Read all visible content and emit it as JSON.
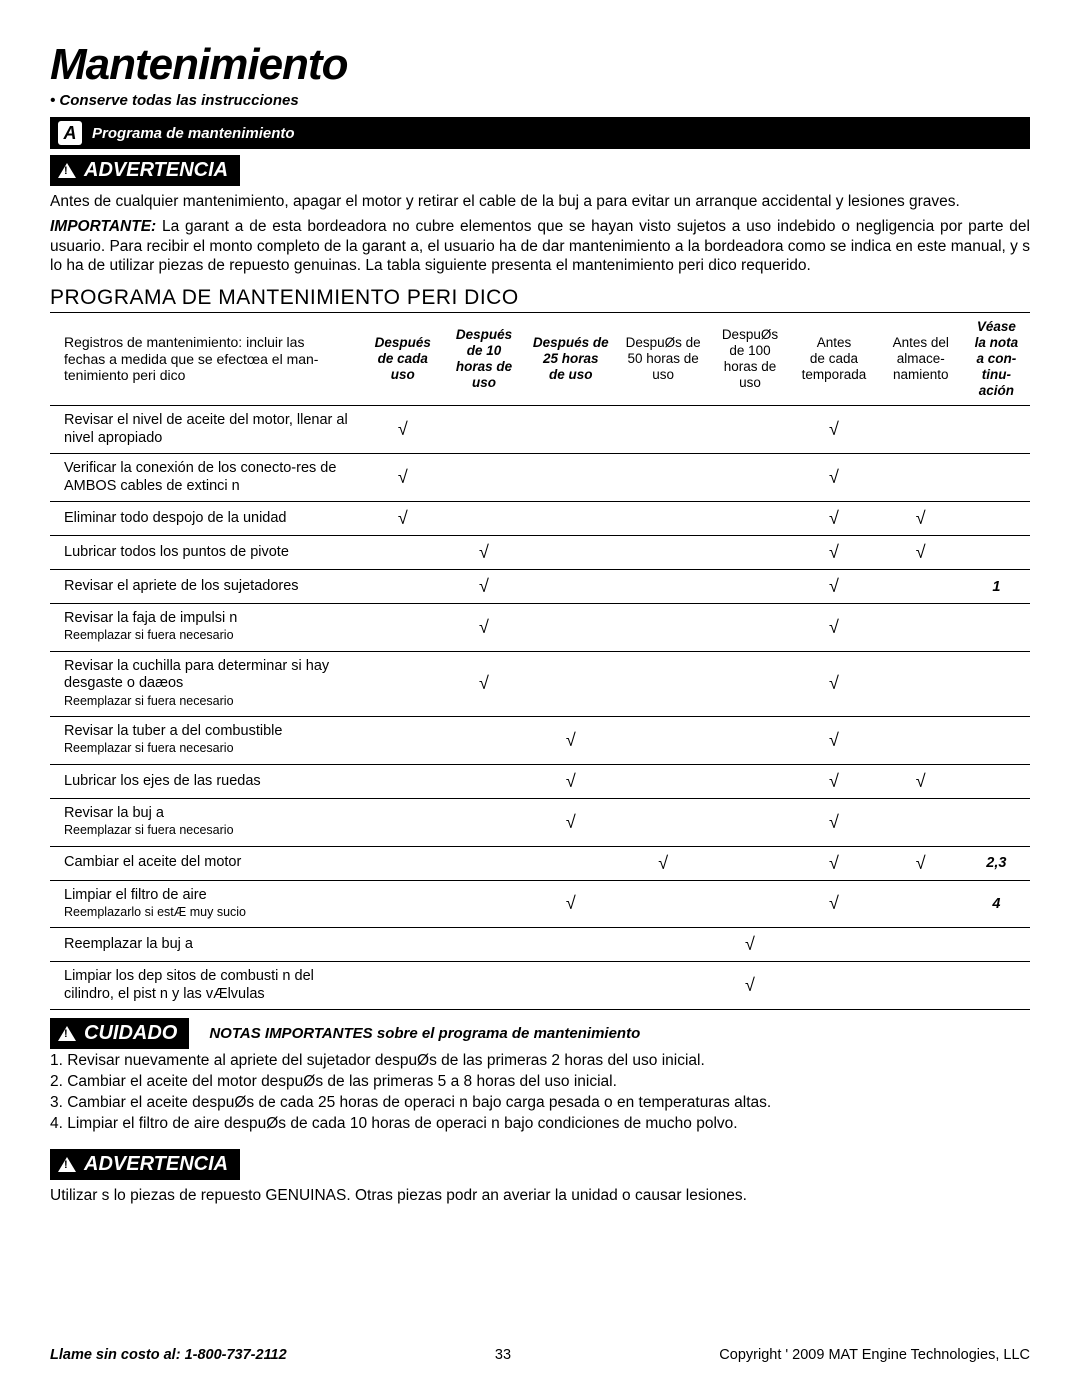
{
  "title": "Mantenimiento",
  "subtitle": "• Conserve todas las instrucciones",
  "bar": {
    "letter": "A",
    "text": "Programa de mantenimiento"
  },
  "warn1": "ADVERTENCIA",
  "p1": "Antes de cualquier mantenimiento, apagar el motor y retirar el cable de la buj a para evitar un arranque accidental y lesiones graves.",
  "imp_label": "IMPORTANTE:",
  "p2": " La garant a de esta bordeadora no cubre elementos que se hayan visto sujetos a uso indebido o negligencia por parte del usuario.  Para recibir el monto completo de la garant a, el usuario ha de dar mantenimiento a la bordeadora como se indica en este manual, y s lo ha de utilizar piezas de repuesto genuinas.  La tabla siguiente presenta el mantenimiento peri dico requerido.",
  "section": "PROGRAMA DE MANTENIMIENTO PERI DICO",
  "head": {
    "desc1": "Registros de mantenimiento: incluir las",
    "desc2": "fechas a medida que se efectœa el man-",
    "desc3": "tenimiento peri dico",
    "c1a": "Después",
    "c1b": "de cada",
    "c1c": "uso",
    "c2a": "Después",
    "c2b": "de 10",
    "c2c": "horas de",
    "c2d": "uso",
    "c3a": "Después de",
    "c3b": "25 horas",
    "c3c": "de uso",
    "c4a": "DespuØs de",
    "c4b": "50 horas de",
    "c4c": "uso",
    "c5a": "DespuØs",
    "c5b": "de 100",
    "c5c": "horas de",
    "c5d": "uso",
    "c6a": "Antes",
    "c6b": "de cada",
    "c6c": "temporada",
    "c7a": "Antes del",
    "c7b": "almace-",
    "c7c": "namiento",
    "c8a": "Véase",
    "c8b": "la nota",
    "c8c": "a con-",
    "c8d": "tinu-",
    "c8e": "ación"
  },
  "rows": [
    {
      "desc": "Revisar el nivel de aceite del motor, llenar al nivel apropiado",
      "c": [
        true,
        false,
        false,
        false,
        false,
        true,
        false
      ],
      "note": ""
    },
    {
      "desc": "Verificar la conexión de los conecto-res de AMBOS cables de extinci n",
      "c": [
        true,
        false,
        false,
        false,
        false,
        true,
        false
      ],
      "note": ""
    },
    {
      "desc": "Eliminar todo despojo de la unidad",
      "c": [
        true,
        false,
        false,
        false,
        false,
        true,
        true
      ],
      "note": ""
    },
    {
      "desc": "Lubricar todos los puntos de pivote",
      "c": [
        false,
        true,
        false,
        false,
        false,
        true,
        true
      ],
      "note": ""
    },
    {
      "desc": "Revisar el apriete de los sujetadores",
      "c": [
        false,
        true,
        false,
        false,
        false,
        true,
        false
      ],
      "note": "1"
    },
    {
      "desc": "Revisar la faja de impulsi n",
      "sub": "Reemplazar si fuera necesario",
      "c": [
        false,
        true,
        false,
        false,
        false,
        true,
        false
      ],
      "note": ""
    },
    {
      "desc": "Revisar la cuchilla para determinar si hay desgaste o daæos",
      "sub": "Reemplazar si fuera necesario",
      "c": [
        false,
        true,
        false,
        false,
        false,
        true,
        false
      ],
      "note": ""
    },
    {
      "desc": "Revisar la tuber a del combustible",
      "sub": "Reemplazar si fuera necesario",
      "c": [
        false,
        false,
        true,
        false,
        false,
        true,
        false
      ],
      "note": ""
    },
    {
      "desc": "Lubricar los ejes de las ruedas",
      "c": [
        false,
        false,
        true,
        false,
        false,
        true,
        true
      ],
      "note": ""
    },
    {
      "desc": "Revisar la buj a",
      "sub": "Reemplazar si fuera necesario",
      "c": [
        false,
        false,
        true,
        false,
        false,
        true,
        false
      ],
      "note": ""
    },
    {
      "desc": "Cambiar el aceite del motor",
      "c": [
        false,
        false,
        false,
        true,
        false,
        true,
        true
      ],
      "note": "2,3"
    },
    {
      "desc": "Limpiar el filtro de aire",
      "sub": "Reemplazarlo si estÆ muy sucio",
      "c": [
        false,
        false,
        true,
        false,
        false,
        true,
        false
      ],
      "note": "4"
    },
    {
      "desc": "Reemplazar la buj a",
      "c": [
        false,
        false,
        false,
        false,
        true,
        false,
        false
      ],
      "note": ""
    },
    {
      "desc": "Limpiar los dep sitos de combusti n del cilindro, el pist n y las vÆlvulas",
      "c": [
        false,
        false,
        false,
        false,
        true,
        false,
        false
      ],
      "note": ""
    }
  ],
  "check": "√",
  "caution": "CUIDADO",
  "notes_h": "NOTAS IMPORTANTES sobre el programa de mantenimiento",
  "notes": [
    "1. Revisar nuevamente al apriete del sujetador despuØs de las primeras 2 horas del uso inicial.",
    "2. Cambiar el aceite del motor despuØs de las primeras 5 a 8 horas del uso inicial.",
    "3. Cambiar el aceite despuØs de cada 25 horas de operaci n bajo carga pesada o en temperaturas altas.",
    "4. Limpiar el filtro de aire despuØs de cada 10 horas de operaci n bajo condiciones de mucho polvo."
  ],
  "warn2": "ADVERTENCIA",
  "p3": "Utilizar s lo piezas de repuesto GENUINAS.  Otras piezas podr an averiar la unidad o causar lesiones.",
  "footer": {
    "call": "Llame sin costo al: 1-800-737-2112",
    "page": "33",
    "copy": "Copyright ' 2009 MAT Engine Technologies, LLC"
  }
}
